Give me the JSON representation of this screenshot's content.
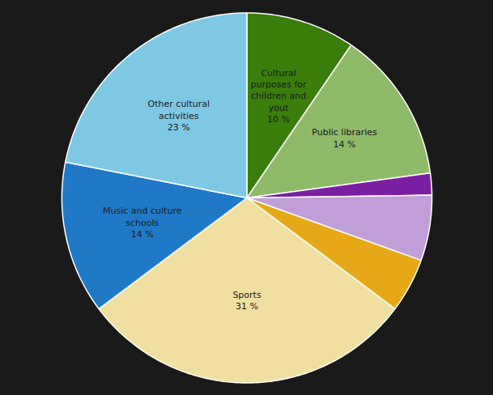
{
  "chart_data": {
    "type": "pie",
    "categories": [
      "Cultural\npurposes for\nchildren and\nyout",
      "Public libraries",
      null,
      null,
      null,
      "Sports",
      "Music and culture\nschools",
      "Other cultural\nactivities"
    ],
    "values": [
      10,
      14,
      2,
      6,
      5,
      31,
      14,
      23
    ],
    "value_labels": [
      "10 %",
      "14 %",
      null,
      null,
      null,
      "31 %",
      "14 %",
      "23 %"
    ],
    "data_labels": true,
    "colors": [
      "#3a7d0a",
      "#8fba6a",
      "#7b1fa2",
      "#c09fd8",
      "#e6a817",
      "#f0dfa0",
      "#2079c7",
      "#7ec8e3"
    ]
  }
}
